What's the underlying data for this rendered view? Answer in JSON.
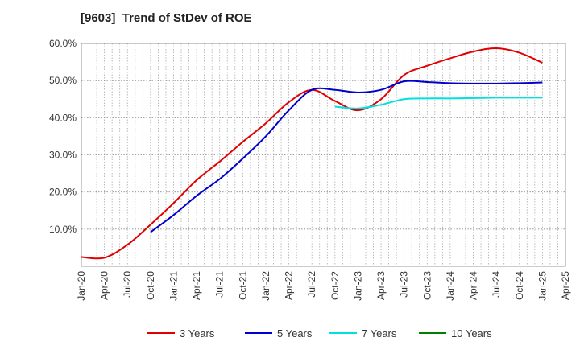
{
  "chart_data": {
    "type": "line",
    "title": "[9603]  Trend of StDev of ROE",
    "xlabel": "",
    "ylabel": "",
    "x_tick_labels": [
      "Jan-20",
      "Apr-20",
      "Jul-20",
      "Oct-20",
      "Jan-21",
      "Apr-21",
      "Jul-21",
      "Oct-21",
      "Jan-22",
      "Apr-22",
      "Jul-22",
      "Oct-22",
      "Jan-23",
      "Apr-23",
      "Jul-23",
      "Oct-23",
      "Jan-24",
      "Apr-24",
      "Jul-24",
      "Oct-24",
      "Jan-25",
      "Apr-25"
    ],
    "y_tick_labels": [
      "10.0%",
      "20.0%",
      "30.0%",
      "40.0%",
      "50.0%",
      "60.0%"
    ],
    "y_tick_values": [
      10,
      20,
      30,
      40,
      50,
      60
    ],
    "ylim": [
      0,
      60
    ],
    "grid": true,
    "legend_position": "bottom",
    "series": [
      {
        "name": "3 Years",
        "color": "#e00000",
        "x": [
          "Jan-20",
          "Apr-20",
          "Jul-20",
          "Oct-20",
          "Jan-21",
          "Apr-21",
          "Jul-21",
          "Oct-21",
          "Jan-22",
          "Apr-22",
          "Jul-22",
          "Oct-22",
          "Jan-23",
          "Apr-23",
          "Jul-23",
          "Oct-23",
          "Jan-24",
          "Apr-24",
          "Jul-24",
          "Oct-24",
          "Jan-25"
        ],
        "values": [
          2.5,
          2.3,
          5.8,
          11.2,
          17.0,
          23.2,
          28.2,
          33.5,
          38.5,
          44.2,
          47.5,
          44.5,
          42.0,
          45.0,
          51.5,
          54.0,
          56.0,
          57.8,
          58.7,
          57.5,
          54.8
        ]
      },
      {
        "name": "5 Years",
        "color": "#0000cc",
        "x": [
          "Oct-20",
          "Jan-21",
          "Apr-21",
          "Jul-21",
          "Oct-21",
          "Jan-22",
          "Apr-22",
          "Jul-22",
          "Oct-22",
          "Jan-23",
          "Apr-23",
          "Jul-23",
          "Oct-23",
          "Jan-24",
          "Apr-24",
          "Jul-24",
          "Oct-24",
          "Jan-25"
        ],
        "values": [
          9.2,
          13.8,
          19.0,
          23.5,
          29.0,
          35.0,
          42.0,
          47.5,
          47.5,
          46.8,
          47.5,
          49.8,
          49.6,
          49.3,
          49.2,
          49.2,
          49.3,
          49.5
        ]
      },
      {
        "name": "7 Years",
        "color": "#00e0e0",
        "x": [
          "Oct-22",
          "Jan-23",
          "Apr-23",
          "Jul-23",
          "Oct-23",
          "Jan-24",
          "Apr-24",
          "Jul-24",
          "Oct-24",
          "Jan-25"
        ],
        "values": [
          43.0,
          42.5,
          43.5,
          45.0,
          45.2,
          45.2,
          45.3,
          45.4,
          45.4,
          45.4
        ]
      },
      {
        "name": "10 Years",
        "color": "#008000",
        "x": [],
        "values": []
      }
    ]
  }
}
